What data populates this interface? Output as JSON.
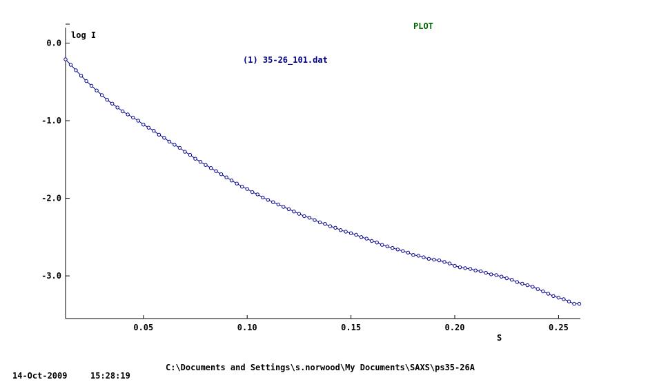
{
  "window": {
    "title": "PLOT",
    "date": "14-Oct-2009",
    "time": "15:28:19",
    "path": "C:\\Documents and Settings\\s.norwood\\My Documents\\SAXS\\ps35-26A"
  },
  "colors": {
    "title": "#006400",
    "series_label": "#00008b",
    "series_line": "#00008b",
    "marker_stroke": "#00008b",
    "axis": "#000000"
  },
  "chart_data": {
    "type": "line",
    "title": "PLOT",
    "xlabel": "S",
    "ylabel": "log I",
    "xlim": [
      0.0125,
      0.2605
    ],
    "ylim": [
      -3.55,
      0.2
    ],
    "x_ticks": [
      0.05,
      0.1,
      0.15,
      0.2,
      0.25
    ],
    "x_tick_labels": [
      "0.05",
      "0.10",
      "0.15",
      "0.20",
      "0.25"
    ],
    "y_ticks": [
      0.0,
      -1.0,
      -2.0,
      -3.0
    ],
    "y_tick_labels": [
      "0.0",
      "-1.0",
      "-2.0",
      "-3.0"
    ],
    "grid": false,
    "markers": "open-circle",
    "series": [
      {
        "name": "(1) 35-26_101.dat",
        "x": [
          0.0125,
          0.015,
          0.0175,
          0.02,
          0.0225,
          0.025,
          0.0275,
          0.03,
          0.0325,
          0.035,
          0.0375,
          0.04,
          0.0425,
          0.045,
          0.0475,
          0.05,
          0.0525,
          0.055,
          0.0575,
          0.06,
          0.0625,
          0.065,
          0.0675,
          0.07,
          0.0725,
          0.075,
          0.0775,
          0.08,
          0.0825,
          0.085,
          0.0875,
          0.09,
          0.0925,
          0.095,
          0.0975,
          0.1,
          0.1025,
          0.105,
          0.1075,
          0.11,
          0.1125,
          0.115,
          0.1175,
          0.12,
          0.1225,
          0.125,
          0.1275,
          0.13,
          0.1325,
          0.135,
          0.1375,
          0.14,
          0.1425,
          0.145,
          0.1475,
          0.15,
          0.1525,
          0.155,
          0.1575,
          0.16,
          0.1625,
          0.165,
          0.1675,
          0.17,
          0.1725,
          0.175,
          0.1775,
          0.18,
          0.1825,
          0.185,
          0.1875,
          0.19,
          0.1925,
          0.195,
          0.1975,
          0.2,
          0.2025,
          0.205,
          0.2075,
          0.21,
          0.2125,
          0.215,
          0.2175,
          0.22,
          0.2225,
          0.225,
          0.2275,
          0.23,
          0.2325,
          0.235,
          0.2375,
          0.24,
          0.2425,
          0.245,
          0.2475,
          0.25,
          0.2525,
          0.255,
          0.2575,
          0.26
        ],
        "y": [
          -0.21,
          -0.28,
          -0.35,
          -0.42,
          -0.49,
          -0.55,
          -0.61,
          -0.67,
          -0.73,
          -0.78,
          -0.83,
          -0.88,
          -0.92,
          -0.96,
          -1.0,
          -1.05,
          -1.09,
          -1.13,
          -1.18,
          -1.22,
          -1.27,
          -1.31,
          -1.35,
          -1.4,
          -1.44,
          -1.49,
          -1.53,
          -1.57,
          -1.61,
          -1.65,
          -1.69,
          -1.73,
          -1.77,
          -1.81,
          -1.85,
          -1.88,
          -1.92,
          -1.95,
          -1.99,
          -2.02,
          -2.05,
          -2.08,
          -2.11,
          -2.14,
          -2.17,
          -2.2,
          -2.23,
          -2.25,
          -2.28,
          -2.31,
          -2.33,
          -2.36,
          -2.38,
          -2.41,
          -2.43,
          -2.45,
          -2.47,
          -2.5,
          -2.52,
          -2.55,
          -2.57,
          -2.6,
          -2.62,
          -2.64,
          -2.66,
          -2.68,
          -2.7,
          -2.73,
          -2.74,
          -2.76,
          -2.78,
          -2.79,
          -2.8,
          -2.82,
          -2.84,
          -2.87,
          -2.89,
          -2.9,
          -2.91,
          -2.93,
          -2.94,
          -2.96,
          -2.98,
          -2.99,
          -3.01,
          -3.03,
          -3.05,
          -3.08,
          -3.1,
          -3.12,
          -3.14,
          -3.17,
          -3.2,
          -3.23,
          -3.26,
          -3.28,
          -3.3,
          -3.33,
          -3.36,
          -3.36
        ]
      }
    ]
  }
}
